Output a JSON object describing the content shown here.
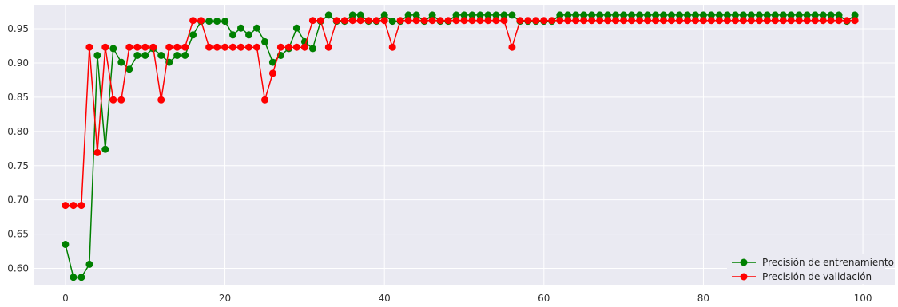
{
  "chart_data": {
    "type": "line",
    "title": "",
    "xlabel": "",
    "ylabel": "",
    "xlim": [
      -4,
      104
    ],
    "ylim": [
      0.575,
      0.985
    ],
    "x_ticks": [
      0,
      20,
      40,
      60,
      80,
      100
    ],
    "x_tick_labels": [
      "0",
      "20",
      "40",
      "60",
      "80",
      "100"
    ],
    "y_ticks": [
      0.6,
      0.65,
      0.7,
      0.75,
      0.8,
      0.85,
      0.9,
      0.95
    ],
    "y_tick_labels": [
      "0.60",
      "0.65",
      "0.70",
      "0.75",
      "0.80",
      "0.85",
      "0.90",
      "0.95"
    ],
    "grid": true,
    "background": "#eaeaf2",
    "legend_placement": "bottom-right",
    "series": [
      {
        "name": "Precisión de entrenamiento",
        "color": "#008000",
        "x": [
          0,
          1,
          2,
          3,
          4,
          5,
          6,
          7,
          8,
          9,
          10,
          11,
          12,
          13,
          14,
          15,
          16,
          17,
          18,
          19,
          20,
          21,
          22,
          23,
          24,
          25,
          26,
          27,
          28,
          29,
          30,
          31,
          32,
          33,
          34,
          35,
          36,
          37,
          38,
          39,
          40,
          41,
          42,
          43,
          44,
          45,
          46,
          47,
          48,
          49,
          50,
          51,
          52,
          53,
          54,
          55,
          56,
          57,
          58,
          59,
          60,
          61,
          62,
          63,
          64,
          65,
          66,
          67,
          68,
          69,
          70,
          71,
          72,
          73,
          74,
          75,
          76,
          77,
          78,
          79,
          80,
          81,
          82,
          83,
          84,
          85,
          86,
          87,
          88,
          89,
          90,
          91,
          92,
          93,
          94,
          95,
          96,
          97,
          98,
          99
        ],
        "values": [
          0.635,
          0.587,
          0.587,
          0.606,
          0.911,
          0.774,
          0.921,
          0.901,
          0.891,
          0.911,
          0.911,
          0.921,
          0.911,
          0.901,
          0.911,
          0.911,
          0.941,
          0.961,
          0.961,
          0.961,
          0.961,
          0.941,
          0.951,
          0.941,
          0.951,
          0.931,
          0.901,
          0.911,
          0.921,
          0.951,
          0.931,
          0.921,
          0.961,
          0.97,
          0.961,
          0.961,
          0.97,
          0.97,
          0.961,
          0.961,
          0.97,
          0.961,
          0.961,
          0.97,
          0.97,
          0.961,
          0.97,
          0.961,
          0.961,
          0.97,
          0.97,
          0.97,
          0.97,
          0.97,
          0.97,
          0.97,
          0.97,
          0.961,
          0.961,
          0.961,
          0.961,
          0.961,
          0.97,
          0.97,
          0.97,
          0.97,
          0.97,
          0.97,
          0.97,
          0.97,
          0.97,
          0.97,
          0.97,
          0.97,
          0.97,
          0.97,
          0.97,
          0.97,
          0.97,
          0.97,
          0.97,
          0.97,
          0.97,
          0.97,
          0.97,
          0.97,
          0.97,
          0.97,
          0.97,
          0.97,
          0.97,
          0.97,
          0.97,
          0.97,
          0.97,
          0.97,
          0.97,
          0.97,
          0.961,
          0.97
        ]
      },
      {
        "name": "Precisión de validación",
        "color": "#ff0000",
        "x": [
          0,
          1,
          2,
          3,
          4,
          5,
          6,
          7,
          8,
          9,
          10,
          11,
          12,
          13,
          14,
          15,
          16,
          17,
          18,
          19,
          20,
          21,
          22,
          23,
          24,
          25,
          26,
          27,
          28,
          29,
          30,
          31,
          32,
          33,
          34,
          35,
          36,
          37,
          38,
          39,
          40,
          41,
          42,
          43,
          44,
          45,
          46,
          47,
          48,
          49,
          50,
          51,
          52,
          53,
          54,
          55,
          56,
          57,
          58,
          59,
          60,
          61,
          62,
          63,
          64,
          65,
          66,
          67,
          68,
          69,
          70,
          71,
          72,
          73,
          74,
          75,
          76,
          77,
          78,
          79,
          80,
          81,
          82,
          83,
          84,
          85,
          86,
          87,
          88,
          89,
          90,
          91,
          92,
          93,
          94,
          95,
          96,
          97,
          98,
          99
        ],
        "values": [
          0.692,
          0.692,
          0.692,
          0.923,
          0.769,
          0.923,
          0.846,
          0.846,
          0.923,
          0.923,
          0.923,
          0.923,
          0.846,
          0.923,
          0.923,
          0.923,
          0.962,
          0.962,
          0.923,
          0.923,
          0.923,
          0.923,
          0.923,
          0.923,
          0.923,
          0.846,
          0.885,
          0.923,
          0.923,
          0.923,
          0.923,
          0.962,
          0.962,
          0.923,
          0.962,
          0.962,
          0.962,
          0.962,
          0.962,
          0.962,
          0.962,
          0.923,
          0.962,
          0.962,
          0.962,
          0.962,
          0.962,
          0.962,
          0.962,
          0.962,
          0.962,
          0.962,
          0.962,
          0.962,
          0.962,
          0.962,
          0.923,
          0.962,
          0.962,
          0.962,
          0.962,
          0.962,
          0.962,
          0.962,
          0.962,
          0.962,
          0.962,
          0.962,
          0.962,
          0.962,
          0.962,
          0.962,
          0.962,
          0.962,
          0.962,
          0.962,
          0.962,
          0.962,
          0.962,
          0.962,
          0.962,
          0.962,
          0.962,
          0.962,
          0.962,
          0.962,
          0.962,
          0.962,
          0.962,
          0.962,
          0.962,
          0.962,
          0.962,
          0.962,
          0.962,
          0.962,
          0.962,
          0.962,
          0.962,
          0.962
        ]
      }
    ]
  }
}
